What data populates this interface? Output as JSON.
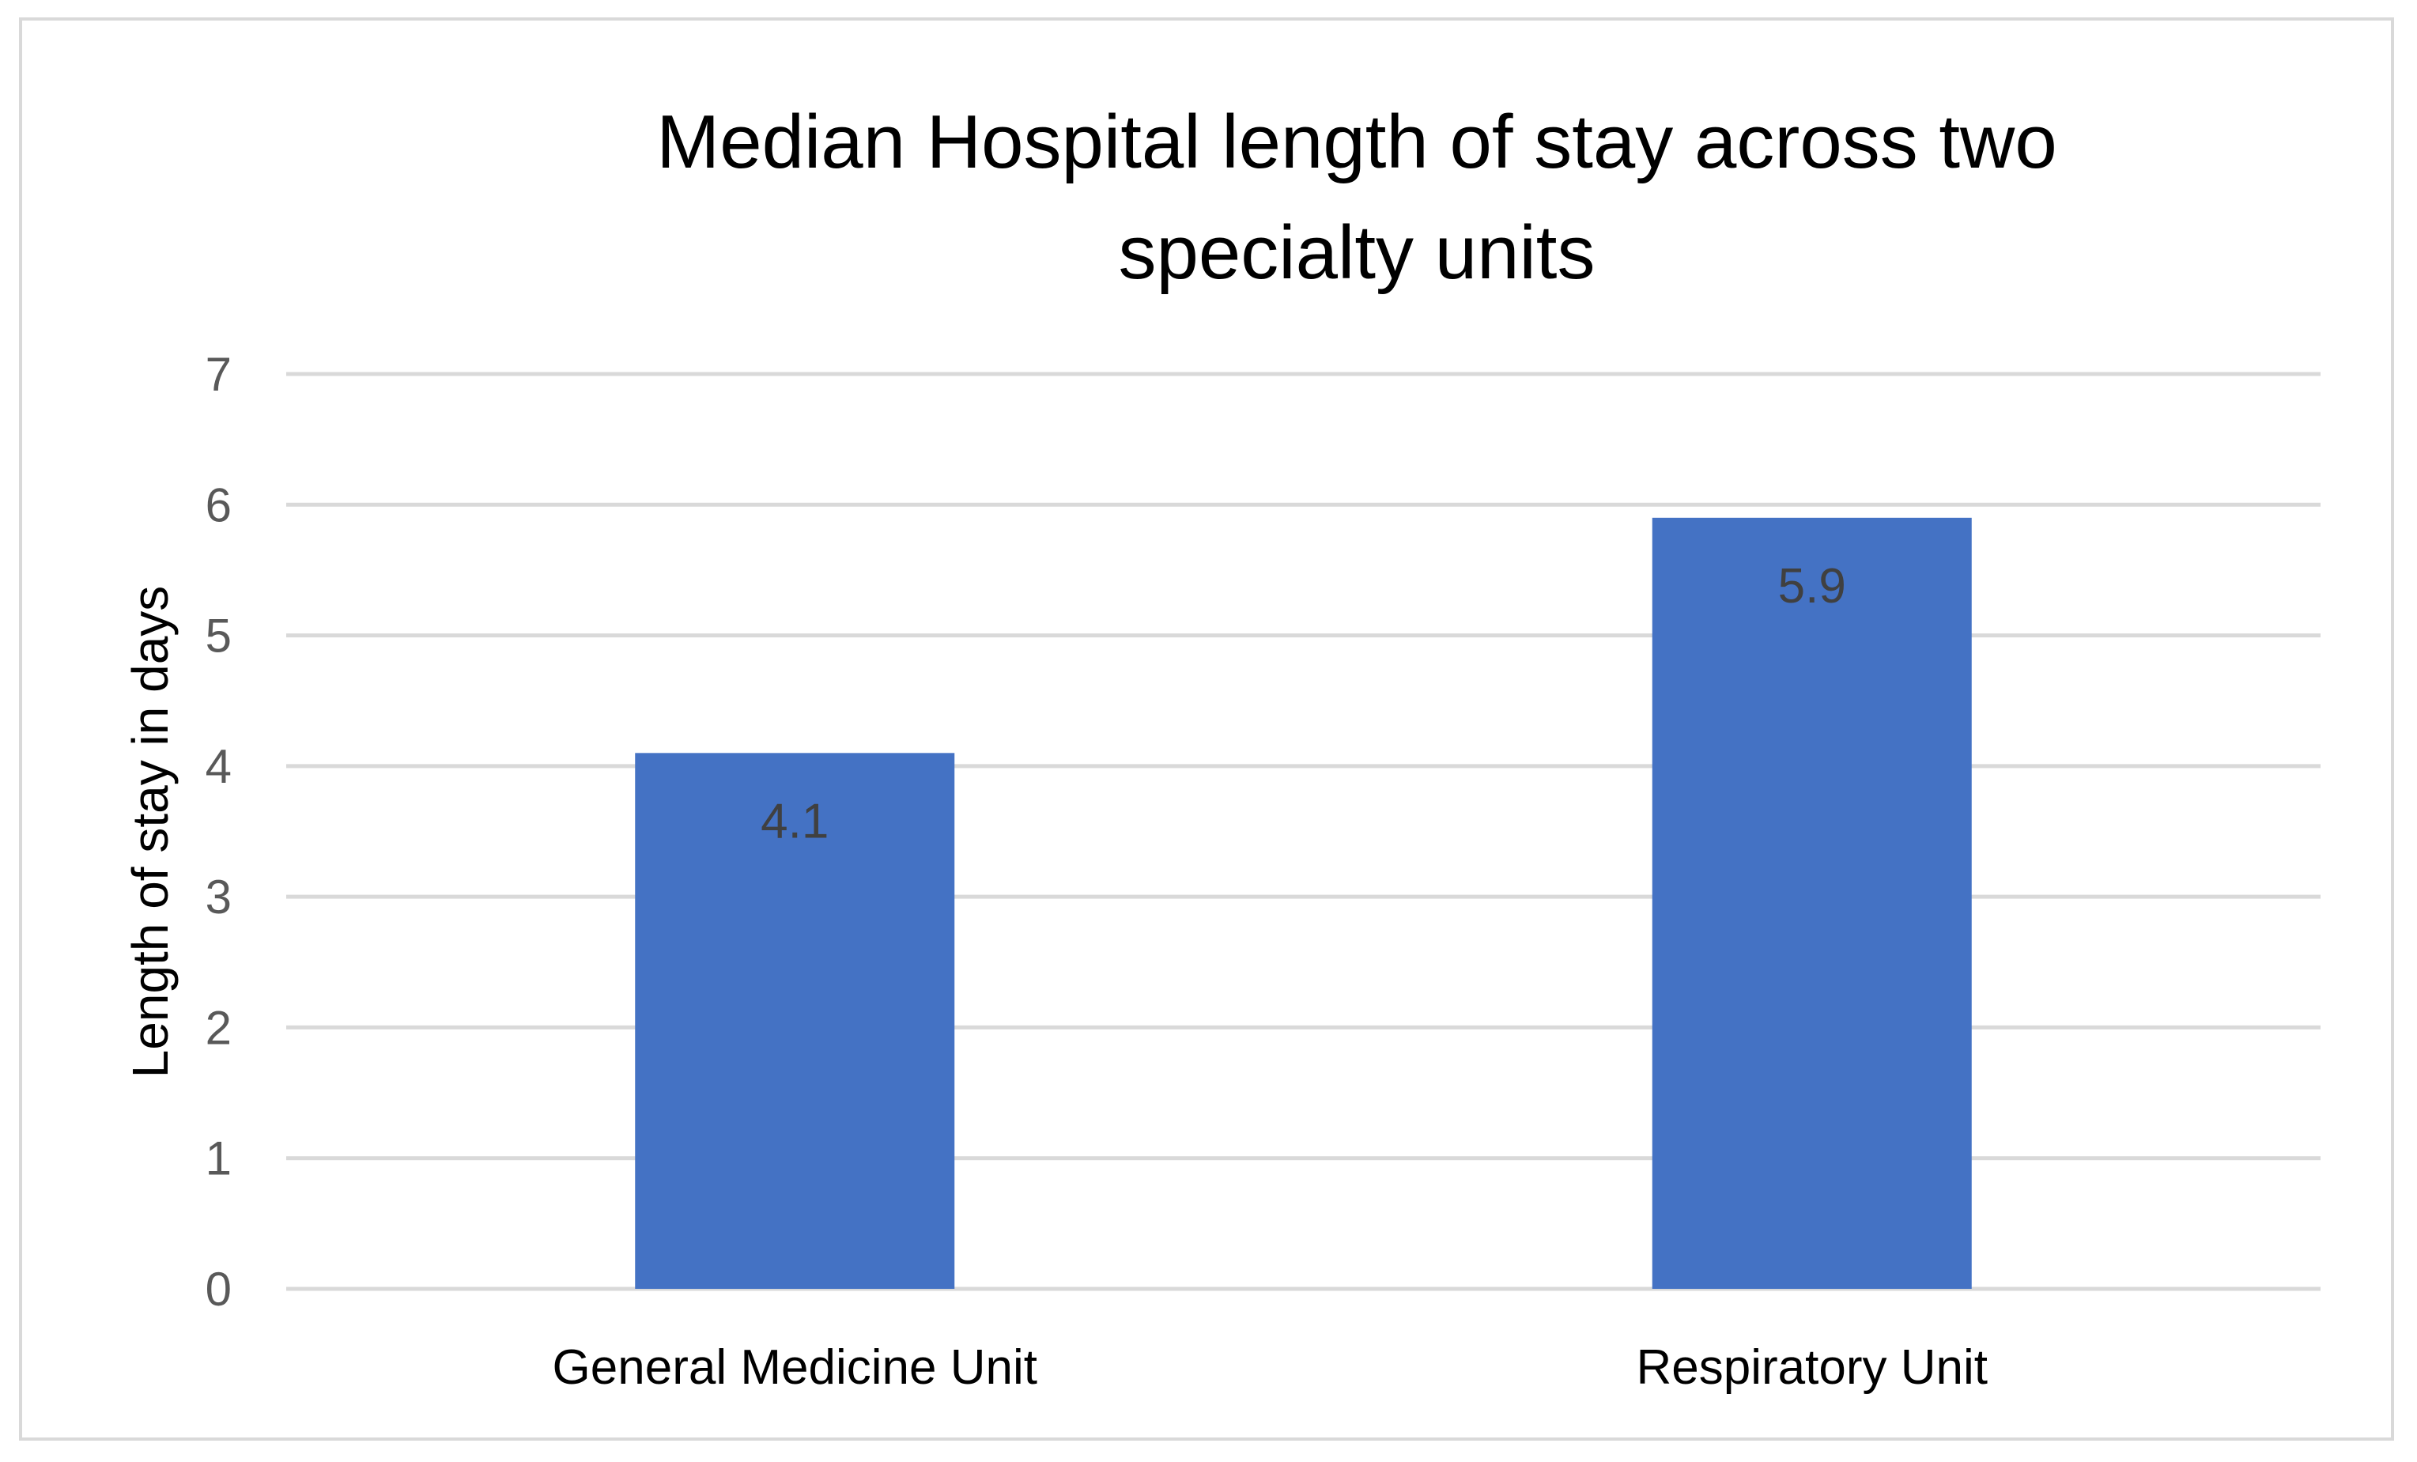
{
  "chart_data": {
    "type": "bar",
    "title_lines": [
      "Median Hospital length of stay across two",
      "specialty units"
    ],
    "xlabel": "",
    "ylabel": "Length of stay in days",
    "categories": [
      "General Medicine Unit",
      "Respiratory Unit"
    ],
    "values": [
      4.1,
      5.9
    ],
    "data_labels": [
      "4.1",
      "5.9"
    ],
    "ylim": [
      0,
      7
    ],
    "yticks": [
      0,
      1,
      2,
      3,
      4,
      5,
      6,
      7
    ],
    "ytick_labels": [
      "0",
      "1",
      "2",
      "3",
      "4",
      "5",
      "6",
      "7"
    ],
    "grid": true,
    "legend": "none",
    "bar_color": "#4472c4",
    "grid_color": "#d9d9d9"
  }
}
